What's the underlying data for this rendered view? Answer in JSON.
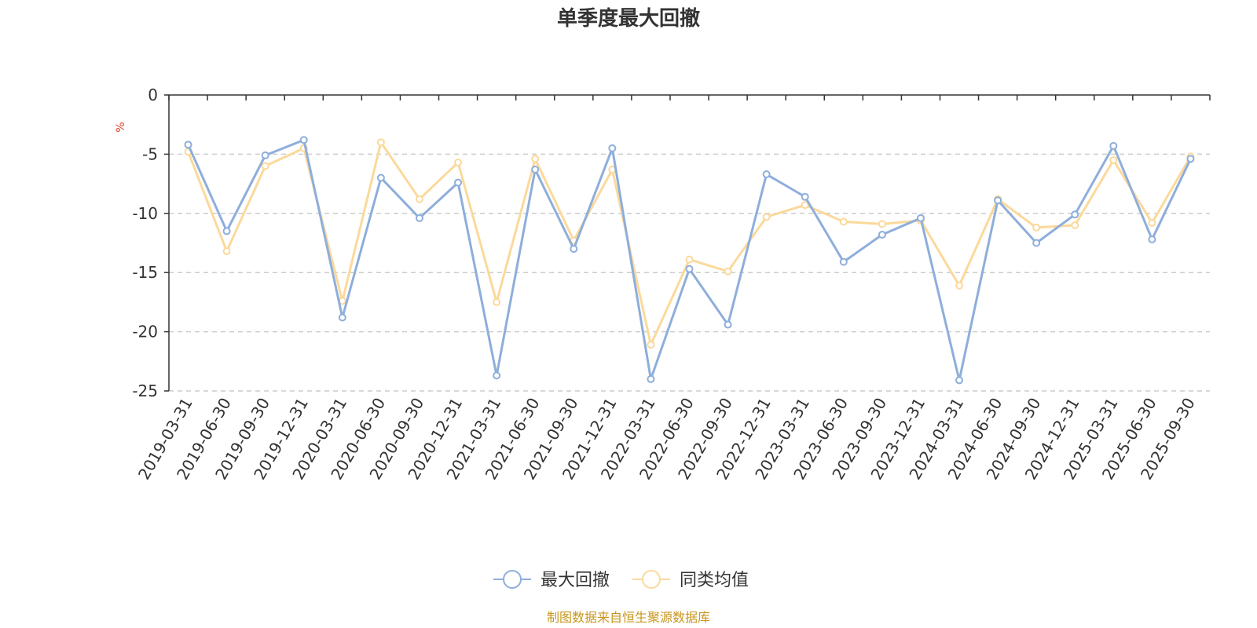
{
  "chart_data": {
    "type": "line",
    "title": "单季度最大回撤",
    "ylabel": "%",
    "ylim": [
      -25,
      0
    ],
    "yticks": [
      0,
      -5,
      -10,
      -15,
      -20,
      -25
    ],
    "grid": true,
    "legend_position": "bottom",
    "x": [
      "2019-03-31",
      "2019-06-30",
      "2019-09-30",
      "2019-12-31",
      "2020-03-31",
      "2020-06-30",
      "2020-09-30",
      "2020-12-31",
      "2021-03-31",
      "2021-06-30",
      "2021-09-30",
      "2021-12-31",
      "2022-03-31",
      "2022-06-30",
      "2022-09-30",
      "2022-12-31",
      "2023-03-31",
      "2023-06-30",
      "2023-09-30",
      "2023-12-31",
      "2024-03-31",
      "2024-06-30",
      "2024-09-30",
      "2024-12-31",
      "2025-03-31",
      "2025-06-30",
      "2025-09-30"
    ],
    "series": [
      {
        "name": "最大回撤",
        "color": "#8eaedb",
        "values": [
          -4.2,
          -11.5,
          -5.1,
          -3.8,
          -18.8,
          -7.0,
          -10.4,
          -7.4,
          -23.7,
          -6.3,
          -13.0,
          -4.5,
          -24.0,
          -14.7,
          -19.4,
          -6.7,
          -8.6,
          -14.1,
          -11.8,
          -10.4,
          -24.1,
          -8.9,
          -12.5,
          -10.1,
          -4.3,
          -12.2,
          -5.4
        ]
      },
      {
        "name": "同类均值",
        "color": "#fbd99b",
        "values": [
          -4.8,
          -13.2,
          -6.0,
          -4.5,
          -17.4,
          -4.0,
          -8.8,
          -5.7,
          -17.5,
          -5.4,
          -12.3,
          -6.3,
          -21.1,
          -13.9,
          -14.9,
          -10.3,
          -9.3,
          -10.7,
          -10.9,
          -10.6,
          -16.1,
          -8.8,
          -11.2,
          -11.0,
          -5.5,
          -10.8,
          -5.2
        ]
      }
    ]
  },
  "footer": {
    "source": "制图数据来自恒生聚源数据库"
  }
}
